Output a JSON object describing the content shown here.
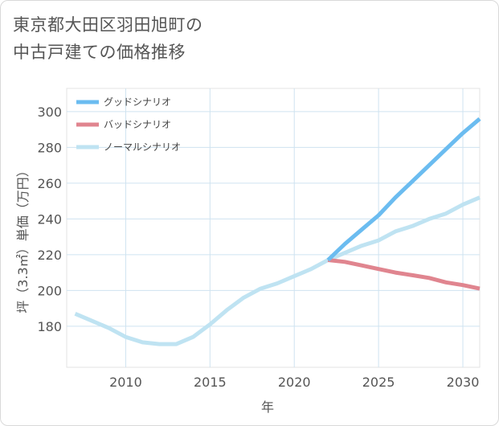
{
  "title_lines": [
    "東京都大田区羽田旭町の",
    "中古戸建ての価格推移"
  ],
  "chart_data": {
    "type": "line",
    "title": "東京都大田区羽田旭町の中古戸建ての価格推移",
    "xlabel": "年",
    "ylabel": "坪（3.3㎡）単価（万円）",
    "xlim": [
      2006.5,
      2031
    ],
    "ylim": [
      157,
      313
    ],
    "xticks": [
      2010,
      2015,
      2020,
      2025,
      2030
    ],
    "yticks": [
      180,
      200,
      220,
      240,
      260,
      280,
      300
    ],
    "grid": true,
    "legend_position": "top-left",
    "series": [
      {
        "name": "グッドシナリオ",
        "color": "#6bbcf0",
        "x": [
          2022,
          2023,
          2024,
          2025,
          2026,
          2027,
          2028,
          2029,
          2030,
          2031
        ],
        "y": [
          217,
          226,
          234,
          242,
          252,
          261,
          270,
          279,
          288,
          296
        ]
      },
      {
        "name": "バッドシナリオ",
        "color": "#e0858f",
        "x": [
          2022,
          2023,
          2024,
          2025,
          2026,
          2027,
          2028,
          2029,
          2030,
          2031
        ],
        "y": [
          217,
          216,
          214,
          212,
          210,
          208.5,
          207,
          204.5,
          203,
          201
        ]
      },
      {
        "name": "ノーマルシナリオ",
        "color": "#bfe3f2",
        "x": [
          2007,
          2008,
          2009,
          2010,
          2011,
          2012,
          2013,
          2014,
          2015,
          2016,
          2017,
          2018,
          2019,
          2020,
          2021,
          2022,
          2023,
          2024,
          2025,
          2026,
          2027,
          2028,
          2029,
          2030,
          2031
        ],
        "y": [
          187,
          183,
          179,
          174,
          171,
          170,
          170,
          174,
          181,
          189,
          196,
          201,
          204,
          208,
          212,
          217,
          221,
          225,
          228,
          233,
          236,
          240,
          243,
          248,
          252
        ]
      }
    ]
  }
}
